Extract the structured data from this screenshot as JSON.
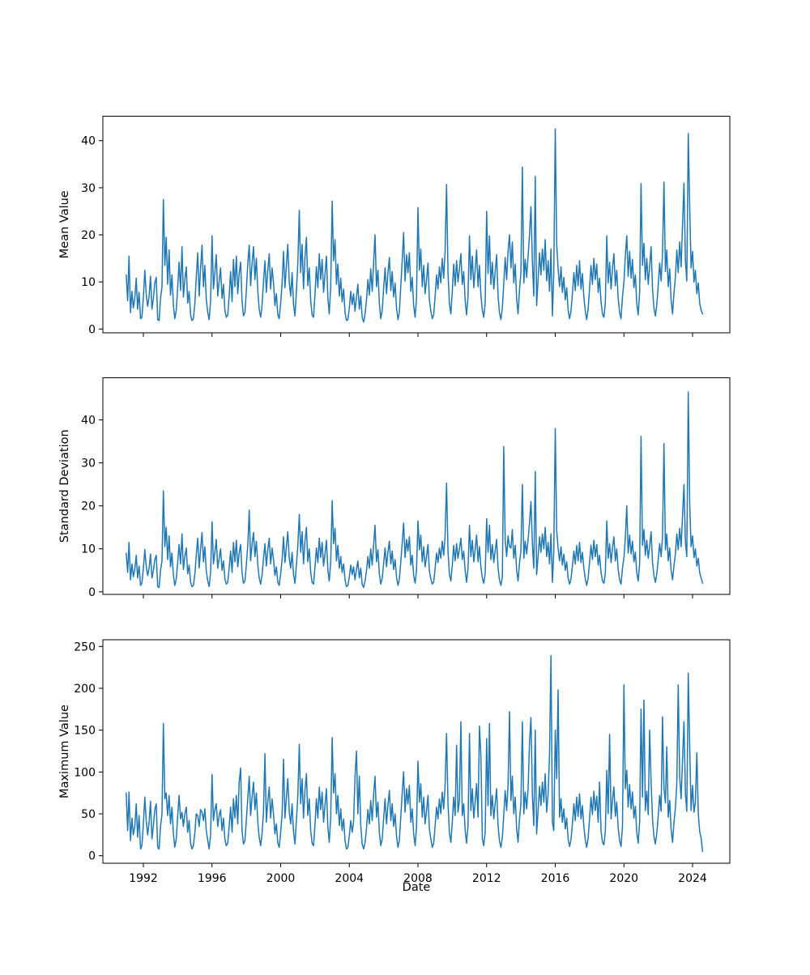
{
  "figure": {
    "xlabel": "Date",
    "background_color": "#ffffff",
    "line_color": "#1f77b4",
    "axis_color": "#000000",
    "x_tick_years": [
      1992,
      1996,
      2000,
      2004,
      2008,
      2012,
      2016,
      2020,
      2024
    ],
    "x_tick_labels": [
      "1992",
      "1996",
      "2000",
      "2004",
      "2008",
      "2012",
      "2016",
      "2020",
      "2024"
    ],
    "points_per_year": 12
  },
  "chart_data": [
    {
      "type": "line",
      "ylabel": "Mean Value",
      "yticks": [
        0,
        10,
        20,
        30,
        40
      ],
      "ylim": [
        -0.8,
        45.2
      ],
      "x_start": 1991.0,
      "x_end": 2024.58,
      "grid": false,
      "legend": null,
      "values": [
        11.5,
        6.0,
        15.5,
        3.5,
        8.0,
        4.5,
        6.5,
        10.8,
        4.2,
        7.8,
        2.2,
        2.5,
        6.8,
        12.5,
        7.5,
        4.8,
        7.0,
        11.2,
        4.2,
        6.5,
        9.8,
        11.0,
        2.0,
        1.8,
        6.5,
        9.0,
        27.5,
        13.5,
        19.5,
        9.5,
        16.8,
        7.2,
        11.5,
        5.0,
        2.2,
        4.0,
        9.0,
        14.2,
        8.2,
        17.5,
        6.8,
        10.5,
        13.2,
        5.5,
        8.0,
        3.0,
        1.8,
        2.2,
        5.5,
        11.0,
        16.2,
        7.0,
        12.8,
        17.8,
        9.0,
        13.5,
        6.2,
        3.5,
        2.0,
        6.0,
        19.8,
        8.5,
        12.0,
        15.8,
        7.0,
        10.2,
        13.0,
        6.5,
        9.5,
        4.0,
        2.5,
        3.0,
        7.0,
        12.2,
        5.8,
        14.8,
        9.0,
        15.5,
        7.5,
        11.8,
        14.2,
        6.0,
        2.8,
        3.5,
        8.0,
        13.8,
        17.8,
        9.2,
        14.0,
        17.5,
        10.5,
        15.0,
        8.0,
        4.2,
        2.5,
        5.0,
        10.0,
        14.5,
        7.8,
        12.5,
        16.0,
        8.5,
        13.0,
        9.8,
        5.0,
        7.5,
        3.0,
        2.2,
        5.5,
        9.8,
        16.5,
        8.8,
        13.5,
        18.0,
        10.0,
        7.0,
        12.0,
        5.2,
        2.8,
        8.0,
        14.0,
        25.2,
        12.0,
        18.0,
        8.5,
        15.2,
        19.5,
        9.2,
        13.0,
        6.0,
        3.0,
        2.5,
        7.5,
        13.2,
        8.8,
        16.0,
        10.5,
        14.8,
        7.8,
        11.5,
        15.5,
        6.5,
        3.2,
        9.0,
        27.2,
        14.5,
        19.0,
        9.5,
        13.8,
        7.0,
        10.8,
        5.8,
        8.5,
        3.5,
        1.8,
        2.0,
        4.5,
        8.0,
        5.2,
        7.5,
        3.8,
        6.8,
        9.5,
        4.2,
        7.0,
        2.5,
        1.5,
        3.2,
        6.0,
        10.5,
        7.2,
        12.8,
        8.0,
        14.2,
        20.0,
        9.0,
        12.5,
        5.5,
        2.2,
        4.0,
        8.5,
        13.0,
        7.5,
        11.8,
        15.2,
        8.2,
        12.2,
        6.8,
        9.8,
        4.5,
        2.0,
        3.5,
        9.0,
        14.8,
        20.5,
        10.2,
        15.8,
        12.0,
        16.2,
        8.0,
        11.0,
        5.0,
        2.5,
        6.5,
        25.8,
        12.5,
        17.0,
        9.0,
        13.5,
        7.5,
        10.5,
        14.0,
        6.2,
        3.8,
        2.2,
        3.0,
        7.0,
        11.5,
        8.5,
        13.2,
        9.8,
        15.0,
        10.8,
        16.5,
        30.7,
        12.0,
        5.5,
        3.2,
        8.0,
        13.8,
        9.2,
        14.5,
        10.0,
        12.8,
        16.0,
        9.5,
        12.2,
        6.0,
        3.0,
        7.0,
        19.8,
        10.5,
        15.5,
        8.8,
        12.5,
        16.8,
        9.0,
        13.5,
        7.2,
        4.0,
        2.5,
        5.5,
        25.0,
        11.8,
        19.8,
        9.5,
        14.2,
        8.5,
        12.0,
        15.8,
        7.0,
        3.5,
        2.0,
        4.5,
        9.5,
        15.2,
        10.5,
        16.5,
        20.0,
        13.0,
        18.5,
        9.8,
        13.8,
        6.5,
        3.2,
        8.5,
        12.0,
        34.4,
        9.8,
        14.8,
        11.0,
        15.5,
        20.0,
        26.0,
        14.0,
        7.0,
        32.4,
        5.0,
        10.5,
        16.2,
        11.5,
        17.0,
        12.5,
        19.0,
        10.2,
        14.5,
        8.0,
        17.0,
        2.8,
        12.0,
        42.5,
        18.0,
        12.8,
        9.0,
        13.2,
        7.8,
        11.0,
        6.2,
        8.8,
        4.0,
        2.2,
        3.8,
        7.5,
        12.0,
        8.2,
        13.5,
        9.2,
        14.5,
        8.5,
        11.8,
        6.8,
        3.8,
        2.0,
        4.2,
        8.8,
        13.5,
        9.5,
        15.0,
        10.5,
        13.8,
        7.8,
        10.8,
        5.8,
        3.2,
        2.5,
        5.5,
        19.8,
        9.8,
        14.2,
        8.5,
        12.8,
        16.0,
        9.2,
        12.5,
        6.5,
        3.5,
        2.2,
        6.8,
        10.0,
        15.5,
        19.8,
        11.2,
        16.5,
        10.8,
        14.8,
        8.8,
        11.5,
        5.5,
        3.0,
        8.0,
        30.9,
        13.5,
        18.2,
        10.5,
        15.0,
        9.5,
        13.2,
        17.5,
        8.5,
        4.5,
        2.8,
        5.2,
        9.2,
        14.0,
        10.2,
        15.8,
        31.2,
        12.2,
        16.8,
        9.0,
        12.8,
        6.2,
        3.2,
        7.5,
        11.0,
        16.8,
        12.0,
        18.5,
        13.2,
        22.0,
        31.0,
        14.5,
        10.2,
        41.5,
        25.8,
        13.0,
        16.5,
        10.0,
        12.5,
        7.5,
        9.8,
        5.5,
        4.0,
        3.2
      ]
    },
    {
      "type": "line",
      "ylabel": "Standard Deviation",
      "yticks": [
        0,
        10,
        20,
        30,
        40
      ],
      "ylim": [
        -0.6,
        49.8
      ],
      "x_start": 1991.0,
      "x_end": 2024.58,
      "grid": false,
      "legend": null,
      "values": [
        9.0,
        4.5,
        11.5,
        2.8,
        6.5,
        3.5,
        5.2,
        8.5,
        3.2,
        6.0,
        1.5,
        2.0,
        5.5,
        9.8,
        6.0,
        3.8,
        5.5,
        8.8,
        3.2,
        5.0,
        7.5,
        8.5,
        1.2,
        1.0,
        5.0,
        7.2,
        23.5,
        10.5,
        15.0,
        7.5,
        13.0,
        5.8,
        9.0,
        3.8,
        1.5,
        3.0,
        7.0,
        11.0,
        6.5,
        13.5,
        5.2,
        8.2,
        10.2,
        4.2,
        6.2,
        2.2,
        1.2,
        1.5,
        4.2,
        8.5,
        12.5,
        5.5,
        9.8,
        13.8,
        7.0,
        10.5,
        4.8,
        2.5,
        1.2,
        4.5,
        16.3,
        6.5,
        9.2,
        12.2,
        5.5,
        7.8,
        10.0,
        5.0,
        7.2,
        3.0,
        1.8,
        2.2,
        5.5,
        9.5,
        4.5,
        11.5,
        7.0,
        12.0,
        5.8,
        9.0,
        11.0,
        4.5,
        2.0,
        2.5,
        6.2,
        10.8,
        19.0,
        7.2,
        11.0,
        13.8,
        8.2,
        11.8,
        6.2,
        3.2,
        1.8,
        3.8,
        7.8,
        11.2,
        6.0,
        9.8,
        12.5,
        6.5,
        10.2,
        7.5,
        3.8,
        5.8,
        2.2,
        1.5,
        4.2,
        7.5,
        12.8,
        6.8,
        10.5,
        14.0,
        7.8,
        5.5,
        9.2,
        4.0,
        2.0,
        6.2,
        10.8,
        18.0,
        9.2,
        14.0,
        6.5,
        11.8,
        15.0,
        7.0,
        10.0,
        4.5,
        2.2,
        1.8,
        5.8,
        10.2,
        6.8,
        12.5,
        8.0,
        11.5,
        6.0,
        8.8,
        12.0,
        5.0,
        2.5,
        7.0,
        21.2,
        11.2,
        14.8,
        7.2,
        10.8,
        5.5,
        8.2,
        4.5,
        6.5,
        2.8,
        1.2,
        1.5,
        3.5,
        6.2,
        4.0,
        5.8,
        2.8,
        5.2,
        7.2,
        3.2,
        5.5,
        1.8,
        1.0,
        2.5,
        4.8,
        8.2,
        5.5,
        10.0,
        6.2,
        11.0,
        15.5,
        7.0,
        9.8,
        4.2,
        1.8,
        3.2,
        6.5,
        10.2,
        5.8,
        9.2,
        11.8,
        6.5,
        9.5,
        5.2,
        7.5,
        3.5,
        1.5,
        2.8,
        7.0,
        11.5,
        16.0,
        8.0,
        12.2,
        9.5,
        12.8,
        6.2,
        8.5,
        3.8,
        2.0,
        5.0,
        16.5,
        9.8,
        13.2,
        7.0,
        10.5,
        5.8,
        8.2,
        11.0,
        4.8,
        3.0,
        1.8,
        2.2,
        5.5,
        9.0,
        6.8,
        10.2,
        7.8,
        11.8,
        8.5,
        13.0,
        25.3,
        9.5,
        4.2,
        2.5,
        6.2,
        10.8,
        7.2,
        11.2,
        7.8,
        10.0,
        12.5,
        7.5,
        9.5,
        4.8,
        2.2,
        5.5,
        15.5,
        8.2,
        12.0,
        7.0,
        9.8,
        13.2,
        7.0,
        10.5,
        5.8,
        3.2,
        2.0,
        4.2,
        17.0,
        9.2,
        15.5,
        7.5,
        11.0,
        6.8,
        9.5,
        12.2,
        5.5,
        2.8,
        1.5,
        3.5,
        33.8,
        12.0,
        8.2,
        13.0,
        10.5,
        10.2,
        14.5,
        7.8,
        10.8,
        5.2,
        2.5,
        6.8,
        9.5,
        25.0,
        7.8,
        11.8,
        8.8,
        12.2,
        16.0,
        21.0,
        11.0,
        5.5,
        28.0,
        4.0,
        8.2,
        12.8,
        9.2,
        13.5,
        10.0,
        15.0,
        8.2,
        11.5,
        6.5,
        13.5,
        2.2,
        9.5,
        38.0,
        14.2,
        10.2,
        7.2,
        10.5,
        6.2,
        8.8,
        5.0,
        7.0,
        3.2,
        1.8,
        3.0,
        6.0,
        9.5,
        6.5,
        10.8,
        7.2,
        11.5,
        6.8,
        9.2,
        5.5,
        3.0,
        1.5,
        3.2,
        7.0,
        10.8,
        7.5,
        12.0,
        8.2,
        11.0,
        6.2,
        8.5,
        4.5,
        2.5,
        2.0,
        4.2,
        16.5,
        7.8,
        11.2,
        6.8,
        10.2,
        12.8,
        7.2,
        10.0,
        5.2,
        2.8,
        1.8,
        5.5,
        8.0,
        12.5,
        20.0,
        9.0,
        13.2,
        8.8,
        11.8,
        7.0,
        9.2,
        4.5,
        2.5,
        6.5,
        36.2,
        10.8,
        14.5,
        8.5,
        12.0,
        7.8,
        10.5,
        14.0,
        6.8,
        3.8,
        2.2,
        4.2,
        7.5,
        11.2,
        8.2,
        12.8,
        34.5,
        9.8,
        13.5,
        7.2,
        10.2,
        5.0,
        2.8,
        6.0,
        8.8,
        13.5,
        9.8,
        14.8,
        10.5,
        17.5,
        25.0,
        11.5,
        8.2,
        46.5,
        20.5,
        10.5,
        13.0,
        8.0,
        10.0,
        6.0,
        7.8,
        4.5,
        3.2,
        2.0
      ]
    },
    {
      "type": "line",
      "ylabel": "Maximum Value",
      "yticks": [
        0,
        50,
        100,
        150,
        200,
        250
      ],
      "ylim": [
        -9,
        258
      ],
      "x_start": 1991.0,
      "x_end": 2024.58,
      "grid": false,
      "legend": null,
      "values": [
        75,
        30,
        76,
        18,
        45,
        25,
        35,
        62,
        22,
        48,
        8,
        12,
        38,
        70,
        42,
        25,
        40,
        65,
        20,
        36,
        55,
        62,
        10,
        8,
        35,
        50,
        158,
        68,
        75,
        48,
        72,
        38,
        58,
        26,
        10,
        20,
        48,
        72,
        44,
        52,
        35,
        50,
        58,
        28,
        42,
        15,
        8,
        12,
        28,
        50,
        48,
        35,
        55,
        52,
        42,
        56,
        30,
        18,
        8,
        25,
        97,
        42,
        55,
        62,
        35,
        48,
        55,
        30,
        45,
        20,
        12,
        15,
        35,
        58,
        28,
        68,
        45,
        72,
        38,
        88,
        105,
        30,
        14,
        18,
        42,
        68,
        95,
        48,
        70,
        88,
        55,
        75,
        40,
        22,
        12,
        26,
        52,
        122,
        40,
        65,
        82,
        45,
        68,
        50,
        26,
        38,
        15,
        10,
        28,
        50,
        115,
        45,
        70,
        92,
        52,
        38,
        62,
        28,
        14,
        42,
        72,
        133,
        62,
        92,
        45,
        78,
        98,
        48,
        68,
        30,
        15,
        12,
        38,
        68,
        45,
        82,
        55,
        76,
        40,
        60,
        80,
        34,
        16,
        46,
        141,
        75,
        98,
        50,
        72,
        36,
        56,
        30,
        44,
        18,
        8,
        10,
        24,
        42,
        28,
        40,
        95,
        125,
        50,
        95,
        36,
        14,
        8,
        16,
        32,
        55,
        38,
        66,
        42,
        74,
        95,
        46,
        64,
        28,
        12,
        20,
        44,
        68,
        38,
        60,
        78,
        42,
        62,
        35,
        50,
        24,
        10,
        18,
        46,
        76,
        100,
        52,
        80,
        62,
        84,
        40,
        56,
        26,
        12,
        34,
        113,
        64,
        86,
        46,
        70,
        38,
        54,
        72,
        32,
        20,
        10,
        15,
        36,
        58,
        44,
        68,
        50,
        76,
        56,
        84,
        146,
        62,
        28,
        16,
        40,
        70,
        48,
        132,
        52,
        66,
        160,
        48,
        62,
        30,
        15,
        36,
        146,
        54,
        80,
        45,
        64,
        86,
        46,
        155,
        120,
        20,
        12,
        28,
        140,
        60,
        158,
        48,
        72,
        44,
        62,
        80,
        36,
        18,
        10,
        22,
        48,
        78,
        54,
        84,
        172,
        66,
        95,
        50,
        70,
        33,
        16,
        44,
        62,
        160,
        50,
        76,
        56,
        80,
        135,
        165,
        72,
        36,
        150,
        26,
        54,
        83,
        60,
        88,
        64,
        98,
        52,
        74,
        120,
        239,
        40,
        30,
        150,
        92,
        198,
        46,
        68,
        40,
        56,
        32,
        45,
        20,
        11,
        19,
        38,
        62,
        42,
        70,
        47,
        74,
        44,
        60,
        35,
        19,
        10,
        21,
        45,
        70,
        49,
        77,
        54,
        71,
        40,
        88,
        30,
        16,
        13,
        28,
        102,
        50,
        145,
        44,
        66,
        82,
        47,
        64,
        33,
        18,
        11,
        35,
        204,
        80,
        102,
        58,
        85,
        56,
        76,
        45,
        59,
        28,
        15,
        41,
        175,
        70,
        186,
        54,
        77,
        49,
        150,
        90,
        44,
        23,
        14,
        27,
        47,
        72,
        53,
        166,
        81,
        63,
        130,
        46,
        66,
        32,
        16,
        39,
        57,
        86,
        204,
        95,
        68,
        113,
        160,
        74,
        53,
        218,
        130,
        54,
        84,
        52,
        64,
        123,
        50,
        29,
        21,
        5
      ]
    }
  ]
}
